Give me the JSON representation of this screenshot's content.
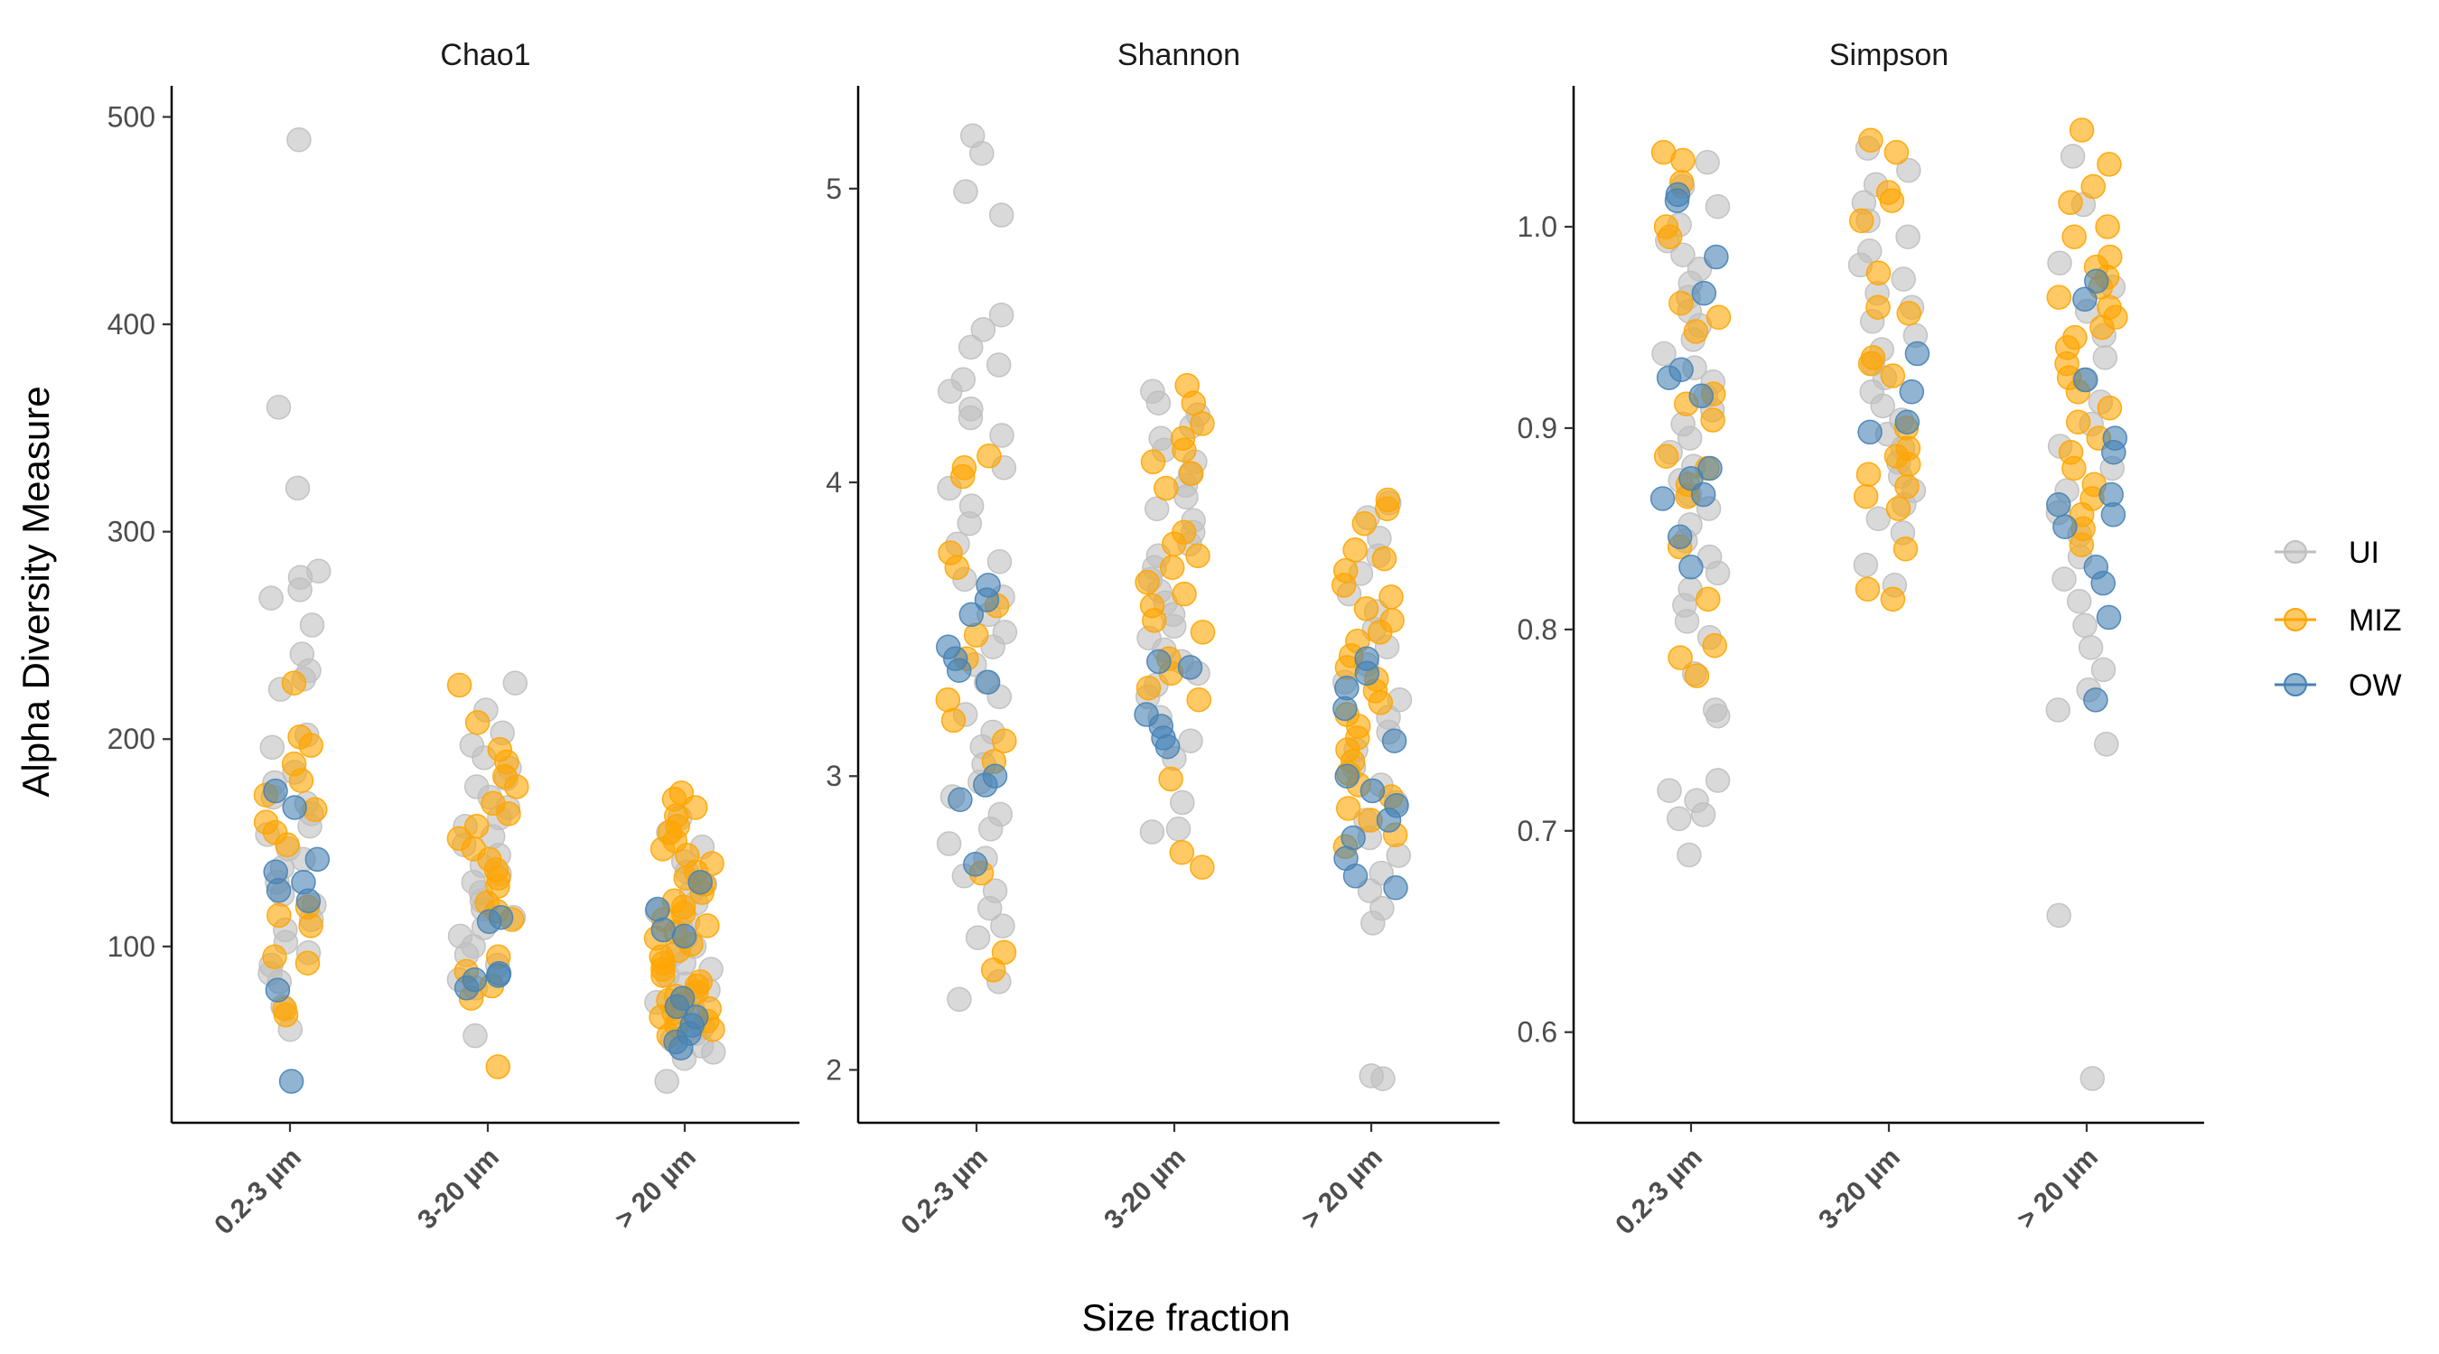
{
  "chart_data": [
    {
      "type": "scatter",
      "title": "Chao1",
      "categories": [
        "0.2-3 µm",
        "3-20 µm",
        "> 20 µm"
      ],
      "yticks": [
        100,
        200,
        300,
        400,
        500
      ],
      "ylim": [
        15,
        515
      ],
      "series": [
        {
          "name": "UI",
          "points": {
            "0.2-3 µm": [
              489,
              360,
              321,
              281,
              278,
              272,
              268,
              255,
              241,
              233,
              229,
              224,
              202,
              196,
              184,
              179,
              172,
              169,
              164,
              158,
              154,
              147,
              142,
              138,
              131,
              125,
              120,
              113,
              108,
              102,
              97,
              91,
              87,
              83,
              71,
              60
            ],
            "3-20 µm": [
              227,
              214,
              203,
              197,
              191,
              186,
              181,
              177,
              172,
              167,
              162,
              158,
              153,
              149,
              144,
              139,
              135,
              131,
              126,
              122,
              118,
              114,
              109,
              105,
              100,
              96,
              91,
              84,
              80,
              57
            ],
            "> 20 µm": [
              162,
              155,
              148,
              141,
              136,
              130,
              126,
              121,
              117,
              112,
              108,
              104,
              100,
              96,
              92,
              89,
              86,
              82,
              79,
              76,
              73,
              70,
              67,
              64,
              61,
              58,
              55,
              52,
              49,
              46,
              35
            ]
          }
        },
        {
          "name": "MIZ",
          "points": {
            "0.2-3 µm": [
              227,
              201,
              197,
              188,
              180,
              173,
              166,
              160,
              155,
              149,
              119,
              115,
              110,
              95,
              92,
              70,
              67
            ],
            "3-20 µm": [
              226,
              208,
              195,
              189,
              182,
              177,
              169,
              164,
              158,
              152,
              147,
              142,
              137,
              133,
              129,
              121,
              117,
              113,
              95,
              88,
              81,
              75,
              42
            ],
            "> 20 µm": [
              174,
              171,
              167,
              163,
              158,
              155,
              151,
              147,
              144,
              140,
              136,
              133,
              130,
              126,
              122,
              119,
              116,
              113,
              110,
              107,
              104,
              101,
              98,
              95,
              92,
              89,
              86,
              83,
              81,
              78,
              76,
              74,
              72,
              70,
              68,
              66,
              64,
              62,
              60,
              57
            ]
          }
        },
        {
          "name": "OW",
          "points": {
            "0.2-3 µm": [
              175,
              167,
              142,
              136,
              131,
              127,
              122,
              79,
              35
            ],
            "3-20 µm": [
              114,
              112,
              87,
              86,
              84,
              80
            ],
            "> 20 µm": [
              131,
              118,
              108,
              105,
              75,
              71,
              66,
              62,
              58,
              54,
              51
            ]
          }
        }
      ]
    },
    {
      "type": "scatter",
      "title": "Shannon",
      "categories": [
        "0.2-3 µm",
        "3-20 µm",
        "> 20 µm"
      ],
      "yticks": [
        2,
        3,
        4,
        5
      ],
      "ylim": [
        1.82,
        5.35
      ],
      "series": [
        {
          "name": "UI",
          "points": {
            "0.2-3 µm": [
              5.18,
              5.12,
              4.99,
              4.91,
              4.57,
              4.52,
              4.46,
              4.4,
              4.35,
              4.31,
              4.25,
              4.22,
              4.16,
              4.05,
              3.98,
              3.92,
              3.86,
              3.79,
              3.73,
              3.67,
              3.61,
              3.55,
              3.49,
              3.44,
              3.38,
              3.32,
              3.27,
              3.21,
              3.15,
              3.1,
              3.04,
              2.98,
              2.93,
              2.87,
              2.82,
              2.77,
              2.72,
              2.66,
              2.61,
              2.55,
              2.49,
              2.45,
              2.3,
              2.24
            ],
            "3-20 µm": [
              4.31,
              4.27,
              4.23,
              4.19,
              4.15,
              4.11,
              4.07,
              4.03,
              3.99,
              3.95,
              3.91,
              3.87,
              3.83,
              3.79,
              3.75,
              3.71,
              3.67,
              3.63,
              3.59,
              3.55,
              3.51,
              3.47,
              3.43,
              3.39,
              3.35,
              3.31,
              3.27,
              3.2,
              3.12,
              3.06,
              2.91,
              2.82,
              2.81
            ],
            "> 20 µm": [
              3.93,
              3.88,
              3.81,
              3.75,
              3.69,
              3.62,
              3.56,
              3.5,
              3.44,
              3.38,
              3.32,
              3.26,
              3.2,
              3.15,
              3.09,
              3.03,
              2.97,
              2.91,
              2.85,
              2.79,
              2.73,
              2.67,
              2.61,
              2.55,
              2.5,
              1.98,
              1.97
            ]
          }
        },
        {
          "name": "MIZ",
          "points": {
            "0.2-3 µm": [
              4.09,
              4.05,
              4.02,
              3.76,
              3.71,
              3.58,
              3.48,
              3.4,
              3.26,
              3.19,
              3.12,
              3.05,
              2.67,
              2.4,
              2.34
            ],
            "3-20 µm": [
              4.33,
              4.27,
              4.2,
              4.15,
              4.11,
              4.07,
              4.03,
              3.98,
              3.83,
              3.79,
              3.75,
              3.71,
              3.66,
              3.62,
              3.58,
              3.53,
              3.49,
              3.4,
              3.35,
              3.3,
              3.26,
              2.99,
              2.74,
              2.69
            ],
            "> 20 µm": [
              3.94,
              3.91,
              3.86,
              3.77,
              3.74,
              3.7,
              3.65,
              3.61,
              3.57,
              3.53,
              3.49,
              3.46,
              3.41,
              3.37,
              3.33,
              3.29,
              3.25,
              3.21,
              3.17,
              3.13,
              3.09,
              3.05,
              3.01,
              2.97,
              2.93,
              2.89,
              2.85,
              2.8,
              2.76
            ]
          }
        },
        {
          "name": "OW",
          "points": {
            "0.2-3 µm": [
              3.65,
              3.6,
              3.55,
              3.44,
              3.4,
              3.36,
              3.32,
              3.0,
              2.97,
              2.92,
              2.7
            ],
            "3-20 µm": [
              3.39,
              3.37,
              3.21,
              3.17,
              3.13,
              3.1
            ],
            "> 20 µm": [
              3.4,
              3.35,
              3.3,
              3.23,
              3.12,
              3.0,
              2.95,
              2.9,
              2.85,
              2.79,
              2.72,
              2.66,
              2.62
            ]
          }
        }
      ]
    },
    {
      "type": "scatter",
      "title": "Simpson",
      "categories": [
        "0.2-3 µm",
        "3-20 µm",
        "> 20 µm"
      ],
      "yticks": [
        0.6,
        0.7,
        0.8,
        0.9,
        1.0
      ],
      "ylim": [
        0.555,
        1.07
      ],
      "series": [
        {
          "name": "UI",
          "points": {
            "0.2-3 µm": [
              1.032,
              1.02,
              1.01,
              1.001,
              0.993,
              0.986,
              0.979,
              0.972,
              0.965,
              0.958,
              0.951,
              0.944,
              0.937,
              0.93,
              0.923,
              0.916,
              0.909,
              0.902,
              0.895,
              0.888,
              0.881,
              0.874,
              0.867,
              0.86,
              0.852,
              0.844,
              0.836,
              0.828,
              0.82,
              0.812,
              0.804,
              0.796,
              0.778,
              0.76,
              0.757,
              0.725,
              0.72,
              0.715,
              0.708,
              0.706,
              0.688
            ],
            "3-20 µm": [
              1.039,
              1.028,
              1.021,
              1.012,
              1.003,
              0.995,
              0.988,
              0.981,
              0.974,
              0.967,
              0.96,
              0.953,
              0.946,
              0.939,
              0.932,
              0.925,
              0.918,
              0.911,
              0.904,
              0.897,
              0.89,
              0.883,
              0.876,
              0.869,
              0.862,
              0.855,
              0.848,
              0.832,
              0.822
            ],
            "> 20 µm": [
              1.035,
              1.011,
              0.982,
              0.97,
              0.958,
              0.946,
              0.935,
              0.924,
              0.913,
              0.902,
              0.891,
              0.88,
              0.869,
              0.858,
              0.847,
              0.836,
              0.825,
              0.814,
              0.802,
              0.791,
              0.78,
              0.77,
              0.76,
              0.743,
              0.658,
              0.577
            ]
          }
        },
        {
          "name": "MIZ",
          "points": {
            "0.2-3 µm": [
              1.037,
              1.033,
              1.022,
              1.0,
              0.995,
              0.962,
              0.955,
              0.948,
              0.917,
              0.912,
              0.904,
              0.886,
              0.88,
              0.872,
              0.866,
              0.841,
              0.815,
              0.792,
              0.786,
              0.777
            ],
            "3-20 µm": [
              1.043,
              1.037,
              1.017,
              1.013,
              1.003,
              0.977,
              0.96,
              0.957,
              0.935,
              0.932,
              0.926,
              0.9,
              0.89,
              0.886,
              0.882,
              0.877,
              0.871,
              0.866,
              0.86,
              0.84,
              0.82,
              0.815
            ],
            "> 20 µm": [
              1.048,
              1.031,
              1.02,
              1.012,
              1.0,
              0.995,
              0.985,
              0.98,
              0.975,
              0.97,
              0.965,
              0.96,
              0.955,
              0.95,
              0.945,
              0.94,
              0.932,
              0.925,
              0.918,
              0.91,
              0.903,
              0.895,
              0.888,
              0.88,
              0.872,
              0.865,
              0.857,
              0.85,
              0.842
            ]
          }
        },
        {
          "name": "OW",
          "points": {
            "0.2-3 µm": [
              1.016,
              1.013,
              0.985,
              0.967,
              0.929,
              0.925,
              0.916,
              0.88,
              0.875,
              0.867,
              0.865,
              0.846,
              0.831
            ],
            "3-20 µm": [
              0.937,
              0.918,
              0.903,
              0.898
            ],
            "> 20 µm": [
              0.973,
              0.964,
              0.924,
              0.895,
              0.888,
              0.867,
              0.862,
              0.857,
              0.851,
              0.831,
              0.823,
              0.806,
              0.765
            ]
          }
        }
      ]
    }
  ],
  "labels": {
    "y_axis": "Alpha Diversity Measure",
    "x_axis": "Size fraction"
  },
  "legend": {
    "position": "right",
    "items": [
      {
        "label": "UI",
        "color": "#bfbfbf"
      },
      {
        "label": "MIZ",
        "color": "#ffa500"
      },
      {
        "label": "OW",
        "color": "#4682b4"
      }
    ]
  },
  "colors": {
    "UI": "#bfbfbf",
    "MIZ": "#ffa500",
    "OW": "#4682b4"
  }
}
